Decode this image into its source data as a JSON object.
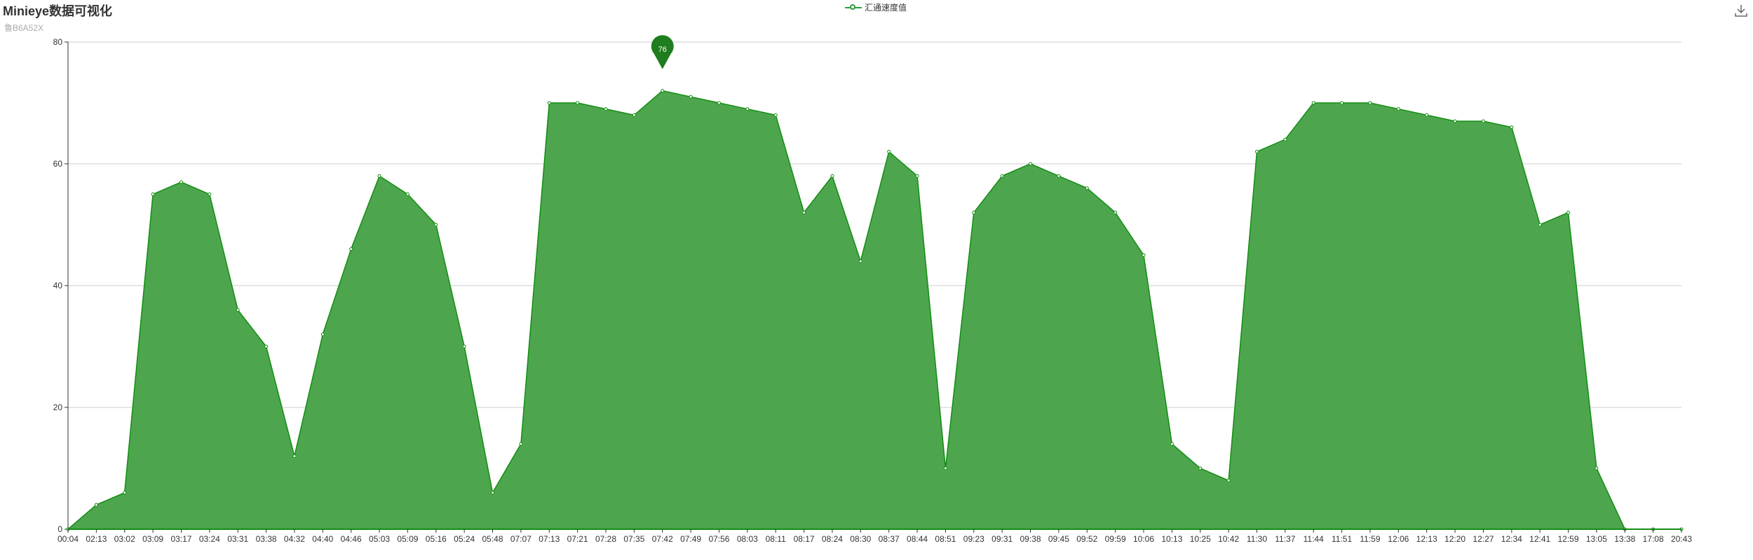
{
  "header": {
    "title": "Minieye数据可视化",
    "subtitle": "鲁B6A52X"
  },
  "legend": {
    "label": "汇通速度值"
  },
  "toolbar": {
    "download_icon": "download-icon"
  },
  "colors": {
    "line": "#138d13",
    "area": "#4da64d",
    "axis": "#333333",
    "grid": "#cccccc",
    "pin": "#1e7d1e"
  },
  "chart_data": {
    "type": "area",
    "series_name": "汇通速度值",
    "categories": [
      "00:04",
      "02:13",
      "03:02",
      "03:09",
      "03:17",
      "03:24",
      "03:31",
      "03:38",
      "04:32",
      "04:40",
      "04:46",
      "05:03",
      "05:09",
      "05:16",
      "05:24",
      "05:48",
      "07:07",
      "07:13",
      "07:21",
      "07:28",
      "07:35",
      "07:42",
      "07:49",
      "07:56",
      "08:03",
      "08:11",
      "08:17",
      "08:24",
      "08:30",
      "08:37",
      "08:44",
      "08:51",
      "09:23",
      "09:31",
      "09:38",
      "09:45",
      "09:52",
      "09:59",
      "10:06",
      "10:13",
      "10:25",
      "10:42",
      "11:30",
      "11:37",
      "11:44",
      "11:51",
      "11:59",
      "12:06",
      "12:13",
      "12:20",
      "12:27",
      "12:34",
      "12:41",
      "12:59",
      "13:05",
      "13:38",
      "17:08",
      "20:43"
    ],
    "values": [
      0,
      4,
      6,
      55,
      57,
      55,
      36,
      30,
      12,
      32,
      46,
      58,
      55,
      50,
      30,
      6,
      14,
      70,
      70,
      69,
      68,
      72,
      71,
      70,
      69,
      68,
      52,
      58,
      44,
      62,
      58,
      10,
      52,
      58,
      60,
      58,
      56,
      52,
      45,
      14,
      10,
      8,
      62,
      64,
      70,
      70,
      70,
      69,
      68,
      67,
      67,
      66,
      50,
      52,
      10,
      0,
      0,
      0
    ],
    "ylim": [
      0,
      80
    ],
    "yticks": [
      0,
      20,
      40,
      60,
      80
    ],
    "xlabel": "",
    "ylabel": "",
    "grid": true,
    "max_marker": {
      "value": 76,
      "label": "76"
    }
  }
}
